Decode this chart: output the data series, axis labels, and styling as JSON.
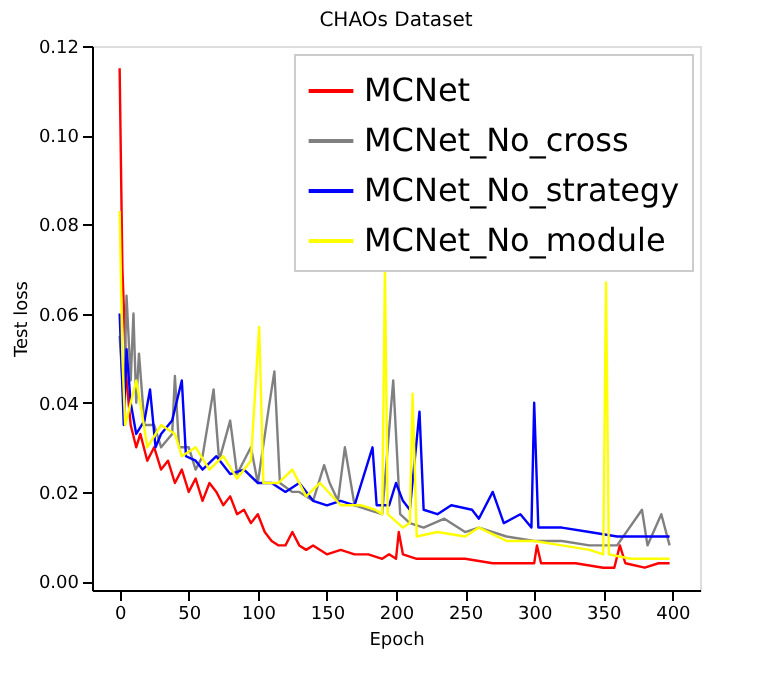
{
  "chart_data": {
    "type": "line",
    "title": "CHAOs Dataset",
    "xlabel": "Epoch",
    "ylabel": "Test loss",
    "xlim": [
      -20,
      420
    ],
    "ylim": [
      -0.002,
      0.12
    ],
    "xticks": [
      0,
      50,
      100,
      150,
      200,
      250,
      300,
      350,
      400
    ],
    "yticks": [
      {
        "value": 0,
        "label": "0.00"
      },
      {
        "value": 0.02,
        "label": "0.02"
      },
      {
        "value": 0.04,
        "label": "0.04"
      },
      {
        "value": 0.06,
        "label": "0.06"
      },
      {
        "value": 0.08,
        "label": "0.08"
      },
      {
        "value": 0.1,
        "label": "0.10"
      },
      {
        "value": 0.12,
        "label": "0.12"
      }
    ],
    "grid": false,
    "legend": "top right",
    "marker": "none",
    "line_style": "solid",
    "series": [
      {
        "name": "MCNet",
        "color": "#ff0000",
        "x": [
          0,
          2,
          5,
          8,
          12,
          15,
          20,
          25,
          30,
          35,
          40,
          45,
          50,
          55,
          60,
          65,
          70,
          75,
          80,
          85,
          90,
          95,
          100,
          105,
          110,
          115,
          120,
          125,
          130,
          135,
          140,
          150,
          160,
          170,
          180,
          190,
          195,
          200,
          202,
          205,
          215,
          230,
          250,
          270,
          290,
          300,
          302,
          305,
          330,
          350,
          358,
          362,
          366,
          380,
          390,
          398
        ],
        "values": [
          0.115,
          0.07,
          0.045,
          0.035,
          0.03,
          0.033,
          0.027,
          0.03,
          0.025,
          0.027,
          0.022,
          0.025,
          0.02,
          0.023,
          0.018,
          0.022,
          0.02,
          0.017,
          0.019,
          0.015,
          0.016,
          0.013,
          0.015,
          0.011,
          0.009,
          0.008,
          0.008,
          0.011,
          0.008,
          0.007,
          0.008,
          0.006,
          0.007,
          0.006,
          0.006,
          0.005,
          0.006,
          0.005,
          0.011,
          0.006,
          0.005,
          0.005,
          0.005,
          0.004,
          0.004,
          0.004,
          0.008,
          0.004,
          0.004,
          0.003,
          0.003,
          0.008,
          0.004,
          0.003,
          0.004,
          0.004
        ]
      },
      {
        "name": "MCNet_No_cross",
        "color": "#808080",
        "x": [
          0,
          3,
          5,
          8,
          10,
          12,
          14,
          18,
          25,
          30,
          38,
          40,
          43,
          50,
          55,
          60,
          68,
          72,
          80,
          85,
          95,
          100,
          108,
          112,
          116,
          125,
          130,
          140,
          148,
          152,
          158,
          163,
          170,
          180,
          190,
          198,
          203,
          210,
          220,
          235,
          250,
          260,
          280,
          300,
          320,
          340,
          360,
          378,
          382,
          392,
          398
        ],
        "values": [
          0.055,
          0.04,
          0.064,
          0.045,
          0.06,
          0.04,
          0.051,
          0.035,
          0.035,
          0.03,
          0.033,
          0.046,
          0.03,
          0.03,
          0.025,
          0.028,
          0.043,
          0.027,
          0.036,
          0.024,
          0.03,
          0.022,
          0.039,
          0.047,
          0.022,
          0.02,
          0.02,
          0.018,
          0.026,
          0.022,
          0.018,
          0.03,
          0.017,
          0.016,
          0.015,
          0.045,
          0.015,
          0.013,
          0.012,
          0.014,
          0.011,
          0.012,
          0.01,
          0.009,
          0.009,
          0.008,
          0.008,
          0.016,
          0.008,
          0.015,
          0.008
        ]
      },
      {
        "name": "MCNet_No_strategy",
        "color": "#0000ff",
        "x": [
          0,
          3,
          5,
          8,
          12,
          18,
          22,
          26,
          30,
          38,
          45,
          48,
          55,
          60,
          70,
          80,
          90,
          100,
          110,
          120,
          130,
          140,
          150,
          160,
          170,
          183,
          186,
          195,
          200,
          205,
          210,
          217,
          220,
          230,
          240,
          255,
          260,
          270,
          278,
          290,
          298,
          300,
          303,
          320,
          340,
          360,
          380,
          398
        ],
        "values": [
          0.06,
          0.035,
          0.052,
          0.04,
          0.033,
          0.036,
          0.043,
          0.03,
          0.033,
          0.036,
          0.045,
          0.028,
          0.027,
          0.025,
          0.028,
          0.024,
          0.025,
          0.022,
          0.022,
          0.02,
          0.022,
          0.018,
          0.017,
          0.018,
          0.017,
          0.03,
          0.017,
          0.017,
          0.022,
          0.018,
          0.016,
          0.038,
          0.016,
          0.015,
          0.017,
          0.016,
          0.014,
          0.02,
          0.013,
          0.015,
          0.012,
          0.04,
          0.012,
          0.012,
          0.011,
          0.01,
          0.01,
          0.01
        ]
      },
      {
        "name": "MCNet_No_module",
        "color": "#ffff00",
        "x": [
          0,
          2,
          4,
          8,
          12,
          16,
          20,
          30,
          40,
          45,
          55,
          65,
          75,
          85,
          95,
          101,
          104,
          115,
          125,
          135,
          145,
          160,
          175,
          185,
          190,
          192,
          194,
          205,
          210,
          212,
          215,
          230,
          250,
          260,
          280,
          300,
          320,
          340,
          350,
          352,
          354,
          370,
          398
        ],
        "values": [
          0.083,
          0.05,
          0.035,
          0.04,
          0.045,
          0.038,
          0.03,
          0.035,
          0.033,
          0.028,
          0.03,
          0.025,
          0.028,
          0.023,
          0.027,
          0.057,
          0.022,
          0.022,
          0.025,
          0.019,
          0.022,
          0.017,
          0.017,
          0.016,
          0.015,
          0.07,
          0.015,
          0.012,
          0.013,
          0.042,
          0.01,
          0.011,
          0.01,
          0.012,
          0.009,
          0.009,
          0.008,
          0.007,
          0.006,
          0.067,
          0.006,
          0.005,
          0.005
        ]
      }
    ]
  }
}
